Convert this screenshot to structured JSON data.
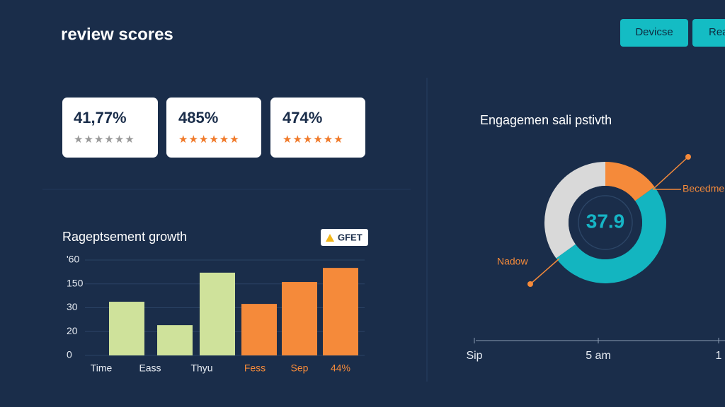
{
  "header": {
    "title": "review scores"
  },
  "buttons": [
    "Devicse",
    "Rea"
  ],
  "cards": [
    {
      "value": "41,77%"
    },
    {
      "value": "485%"
    },
    {
      "value": "474%"
    }
  ],
  "chart_data": [
    {
      "type": "bar",
      "title": "Ragеptsement growth",
      "badge": "GFET",
      "categories": [
        "Time",
        "Eass",
        "Thyu",
        "Fess",
        "Sep",
        "44%"
      ],
      "values": [
        22.5,
        12.7,
        34.7,
        21.6,
        30.8,
        36.7
      ],
      "colors": [
        "#cfe29b",
        "#cfe29b",
        "#cfe29b",
        "#f58a3a",
        "#f58a3a",
        "#f58a3a"
      ],
      "ylim": [
        0,
        40
      ],
      "yticks": [
        0,
        {
          "value": 10,
          "label": "20"
        },
        {
          "value": 20,
          "label": "30"
        },
        {
          "value": 30,
          "label": "150"
        },
        {
          "value": 40,
          "label": "'60"
        }
      ],
      "grid": true
    },
    {
      "type": "donut",
      "title": "Engagemen sali pstivth",
      "center_label": "37.9",
      "series": [
        {
          "name": "Becedme",
          "color": "#f58a3a",
          "value": 15
        },
        {
          "name": "Nadow",
          "color": "#13b5c0",
          "value": 50
        },
        {
          "name": null,
          "color": "#d9d9d9",
          "value": 35
        }
      ],
      "x_axis_labels": [
        "Sip",
        "5 am",
        "1"
      ]
    }
  ]
}
